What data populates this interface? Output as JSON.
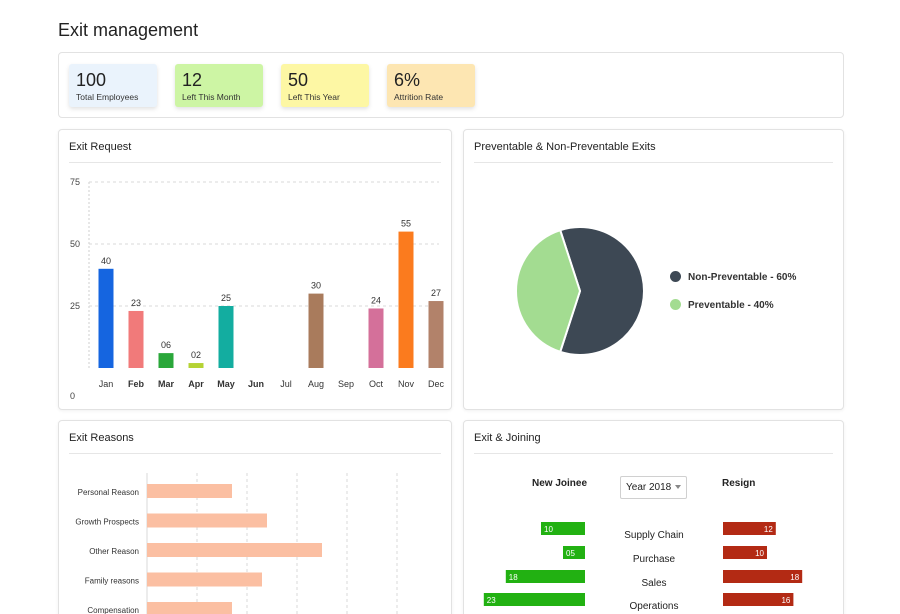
{
  "page": {
    "title": "Exit management"
  },
  "stats": [
    {
      "value": "100",
      "label": "Total Employees",
      "color": "#eaf3fc"
    },
    {
      "value": "12",
      "label": "Left This Month",
      "color": "#cdf5a4"
    },
    {
      "value": "50",
      "label": "Left This Year",
      "color": "#fdf7a4"
    },
    {
      "value": "6%",
      "label": "Attrition Rate",
      "color": "#fde6b2"
    }
  ],
  "exit_request": {
    "title": "Exit Request",
    "chart_data": {
      "type": "bar",
      "categories": [
        "Jan",
        "Feb",
        "Mar",
        "Apr",
        "May",
        "Jun",
        "Jul",
        "Aug",
        "Sep",
        "Oct",
        "Nov",
        "Dec"
      ],
      "values": [
        40,
        23,
        6,
        2,
        25,
        null,
        null,
        30,
        null,
        24,
        55,
        27
      ],
      "data_labels": [
        "40",
        "23",
        "06",
        "02",
        "25",
        "",
        "",
        "30",
        "",
        "24",
        "55",
        "27"
      ],
      "colors": [
        "#1565e0",
        "#f17a7a",
        "#2aa73a",
        "#b5d334",
        "#13ada0",
        "",
        "",
        "#a97b5c",
        "",
        "#d4709a",
        "#fb7b1e",
        "#b2826a"
      ],
      "yticks": [
        "75",
        "50",
        "25",
        "0"
      ],
      "ylim": [
        0,
        75
      ],
      "grid": true
    }
  },
  "preventable": {
    "title": "Preventable & Non-Preventable  Exits",
    "chart_data": {
      "type": "pie",
      "slices": [
        {
          "label": "Non-Preventable - 60%",
          "value": 60,
          "color": "#3d4854"
        },
        {
          "label": "Preventable - 40%",
          "value": 40,
          "color": "#a3dc91"
        }
      ],
      "legend": "right"
    }
  },
  "exit_reasons": {
    "title": "Exit Reasons",
    "chart_data": {
      "type": "bar",
      "orientation": "horizontal",
      "categories": [
        "Personal Reason",
        "Growth Prospects",
        "Other Reason",
        "Family reasons",
        "Compensation"
      ],
      "values": [
        17,
        24,
        35,
        23,
        17
      ],
      "color": "#fbbfa2"
    }
  },
  "exit_joining": {
    "title": "Exit & Joining",
    "new_joinee_label": "New Joinee",
    "resign_label": "Resign",
    "year_select": "Year 2018",
    "chart_data": {
      "type": "bar",
      "orientation": "horizontal",
      "categories": [
        "Supply Chain",
        "Purchase",
        "Sales",
        "Operations"
      ],
      "series": [
        {
          "name": "New Joinee",
          "values": [
            10,
            5,
            18,
            23
          ],
          "labels": [
            "10",
            "05",
            "18",
            "23"
          ],
          "color": "#22b112"
        },
        {
          "name": "Resign",
          "values": [
            12,
            10,
            18,
            16
          ],
          "labels": [
            "12",
            "10",
            "18",
            "16"
          ],
          "color": "#b32a14"
        }
      ]
    }
  }
}
